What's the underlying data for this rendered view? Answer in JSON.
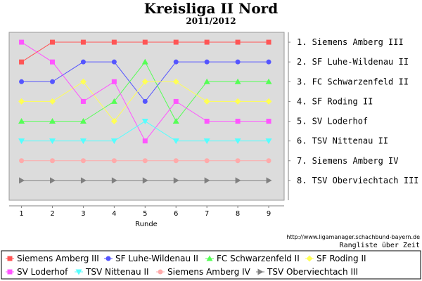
{
  "page": {
    "title": "Kreisliga II Nord",
    "subtitle": "2011/2012",
    "source_url": "http://www.ligamanager.schachbund-bayern.de",
    "caption": "Rangliste über Zeit"
  },
  "chart_data": {
    "type": "line",
    "title": "Kreisliga II Nord",
    "subtitle": "2011/2012",
    "xlabel": "Runde",
    "ylabel": "",
    "x": [
      1,
      2,
      3,
      4,
      5,
      6,
      7,
      8,
      9
    ],
    "xlim": [
      0.6,
      9.5
    ],
    "ylim": [
      9,
      0.5
    ],
    "grid": false,
    "legend_placement": "bottom",
    "rank_labels": [
      "1. Siemens Amberg III",
      "2. SF Luhe-Wildenau II",
      "3. FC Schwarzenfeld II",
      "4. SF Roding II",
      "5. SV Loderhof",
      "6. TSV Nittenau II",
      "7. Siemens Amberg IV",
      "8. TSV Oberviechtach III"
    ],
    "series": [
      {
        "name": "Siemens Amberg III",
        "color": "#ff5555",
        "marker": "square",
        "values": [
          2,
          1,
          1,
          1,
          1,
          1,
          1,
          1,
          1
        ]
      },
      {
        "name": "SF Luhe-Wildenau II",
        "color": "#5555ff",
        "marker": "circle",
        "values": [
          3,
          3,
          2,
          2,
          4,
          2,
          2,
          2,
          2
        ]
      },
      {
        "name": "FC Schwarzenfeld II",
        "color": "#55ff55",
        "marker": "triangle-up",
        "values": [
          5,
          5,
          5,
          4,
          2,
          5,
          3,
          3,
          3
        ]
      },
      {
        "name": "SF Roding II",
        "color": "#ffff55",
        "marker": "diamond",
        "values": [
          4,
          4,
          3,
          5,
          3,
          3,
          4,
          4,
          4
        ]
      },
      {
        "name": "SV Loderhof",
        "color": "#ff55ff",
        "marker": "square",
        "values": [
          1,
          2,
          4,
          3,
          6,
          4,
          5,
          5,
          5
        ]
      },
      {
        "name": "TSV Nittenau II",
        "color": "#55ffff",
        "marker": "triangle-down",
        "values": [
          6,
          6,
          6,
          6,
          5,
          6,
          6,
          6,
          6
        ]
      },
      {
        "name": "Siemens Amberg IV",
        "color": "#ffaaaa",
        "marker": "circle",
        "values": [
          7,
          7,
          7,
          7,
          7,
          7,
          7,
          7,
          7
        ]
      },
      {
        "name": "TSV Oberviechtach III",
        "color": "#808080",
        "marker": "triangle-right",
        "values": [
          8,
          8,
          8,
          8,
          8,
          8,
          8,
          8,
          8
        ]
      }
    ]
  }
}
